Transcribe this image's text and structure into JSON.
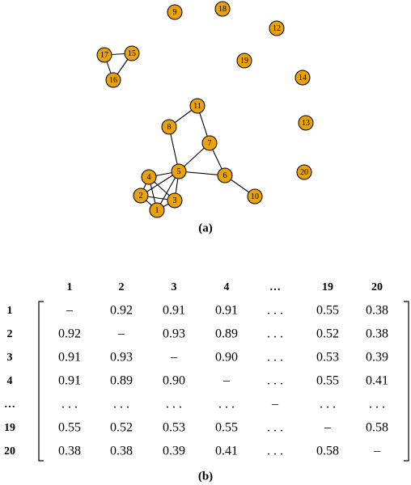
{
  "graph": {
    "caption": "(a)",
    "nodes": [
      "1",
      "2",
      "3",
      "4",
      "5",
      "6",
      "7",
      "8",
      "9",
      "10",
      "11",
      "12",
      "13",
      "14",
      "15",
      "16",
      "17",
      "18",
      "19",
      "20"
    ]
  },
  "matrix": {
    "caption": "(b)",
    "column_headers": [
      "1",
      "2",
      "3",
      "4",
      "…",
      "19",
      "20"
    ],
    "rows": [
      {
        "header": "1",
        "cells": [
          "–",
          "0.92",
          "0.91",
          "0.91",
          ". . .",
          "0.55",
          "0.38"
        ]
      },
      {
        "header": "2",
        "cells": [
          "0.92",
          "–",
          "0.93",
          "0.89",
          ". . .",
          "0.52",
          "0.38"
        ]
      },
      {
        "header": "3",
        "cells": [
          "0.91",
          "0.93",
          "–",
          "0.90",
          ". . .",
          "0.53",
          "0.39"
        ]
      },
      {
        "header": "4",
        "cells": [
          "0.91",
          "0.89",
          "0.90",
          "–",
          ". . .",
          "0.55",
          "0.41"
        ]
      },
      {
        "header": "…",
        "cells": [
          ". . .",
          ". . .",
          ". . .",
          ". . .",
          "–",
          ". . .",
          ". . ."
        ]
      },
      {
        "header": "19",
        "cells": [
          "0.55",
          "0.52",
          "0.53",
          "0.55",
          ". . .",
          "–",
          "0.58"
        ]
      },
      {
        "header": "20",
        "cells": [
          "0.38",
          "0.38",
          "0.39",
          "0.41",
          ". . .",
          "0.58",
          "–"
        ]
      }
    ]
  }
}
